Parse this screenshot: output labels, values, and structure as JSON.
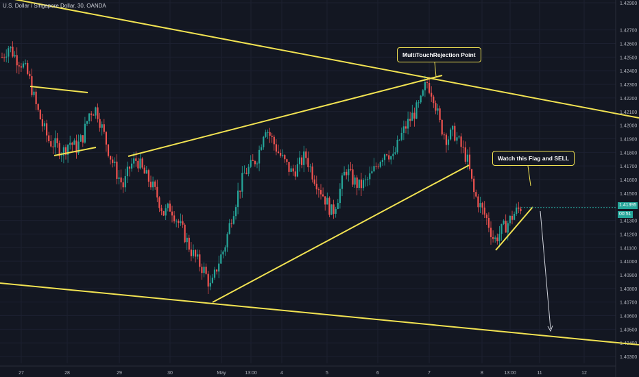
{
  "header": {
    "title": "U.S. Dollar / Singapore Dollar, 30, OANDA"
  },
  "annotations": {
    "rejection": "MultiTouchRejection Point",
    "flag": "Watch this Flag and SELL"
  },
  "badges": {
    "last_price": "1.41395",
    "countdown": "00:51"
  },
  "colors": {
    "background": "#131722",
    "up_candle": "#26a69a",
    "down_candle": "#ef5350",
    "trendline": "#f2e352",
    "axis_text": "#b2b5be",
    "grid": "#1c2030"
  },
  "chart_data": {
    "type": "candlestick",
    "symbol": "USDSGD",
    "interval": "30",
    "y_tick_labels": [
      "1.42900",
      "1.42700",
      "1.42600",
      "1.42500",
      "1.42400",
      "1.42300",
      "1.42200",
      "1.42100",
      "1.42000",
      "1.41900",
      "1.41800",
      "1.41700",
      "1.41600",
      "1.41500",
      "1.41400",
      "1.41300",
      "1.41200",
      "1.41100",
      "1.41000",
      "1.40900",
      "1.40800",
      "1.40700",
      "1.40600",
      "1.40500",
      "1.40400",
      "1.40300"
    ],
    "ylim": [
      1.4025,
      1.4292
    ],
    "x_tick_labels": [
      "27",
      "28",
      "29",
      "30",
      "May",
      "13:00",
      "4",
      "5",
      "6",
      "7",
      "8",
      "13:00",
      "11",
      "12"
    ],
    "price_path": [
      [
        0,
        1.425
      ],
      [
        1,
        1.4258
      ],
      [
        2,
        1.425
      ],
      [
        3,
        1.4245
      ],
      [
        4,
        1.4235
      ],
      [
        5,
        1.4215
      ],
      [
        6,
        1.42
      ],
      [
        7,
        1.4188
      ],
      [
        8,
        1.4185
      ],
      [
        9,
        1.418
      ],
      [
        10,
        1.4188
      ],
      [
        11,
        1.4183
      ],
      [
        12,
        1.4192
      ],
      [
        13,
        1.421
      ],
      [
        14,
        1.4212
      ],
      [
        15,
        1.4195
      ],
      [
        16,
        1.4178
      ],
      [
        17,
        1.4165
      ],
      [
        18,
        1.4155
      ],
      [
        19,
        1.417
      ],
      [
        20,
        1.4175
      ],
      [
        21,
        1.4165
      ],
      [
        22,
        1.4158
      ],
      [
        23,
        1.4148
      ],
      [
        24,
        1.4135
      ],
      [
        25,
        1.414
      ],
      [
        26,
        1.413
      ],
      [
        27,
        1.412
      ],
      [
        28,
        1.4108
      ],
      [
        29,
        1.41
      ],
      [
        30,
        1.4093
      ],
      [
        31,
        1.408
      ],
      [
        32,
        1.4098
      ],
      [
        33,
        1.411
      ],
      [
        34,
        1.4132
      ],
      [
        35,
        1.415
      ],
      [
        36,
        1.4165
      ],
      [
        37,
        1.417
      ],
      [
        38,
        1.4178
      ],
      [
        39,
        1.42
      ],
      [
        40,
        1.419
      ],
      [
        41,
        1.418
      ],
      [
        42,
        1.4172
      ],
      [
        43,
        1.4165
      ],
      [
        44,
        1.417
      ],
      [
        45,
        1.4178
      ],
      [
        46,
        1.4165
      ],
      [
        47,
        1.4155
      ],
      [
        48,
        1.4145
      ],
      [
        49,
        1.4135
      ],
      [
        50,
        1.415
      ],
      [
        51,
        1.4168
      ],
      [
        52,
        1.416
      ],
      [
        53,
        1.4155
      ],
      [
        54,
        1.4158
      ],
      [
        55,
        1.4165
      ],
      [
        56,
        1.4175
      ],
      [
        57,
        1.4182
      ],
      [
        58,
        1.4175
      ],
      [
        59,
        1.419
      ],
      [
        60,
        1.42
      ],
      [
        61,
        1.4208
      ],
      [
        62,
        1.4215
      ],
      [
        63,
        1.4232
      ],
      [
        64,
        1.4222
      ],
      [
        65,
        1.42
      ],
      [
        66,
        1.419
      ],
      [
        67,
        1.4195
      ],
      [
        68,
        1.4185
      ],
      [
        69,
        1.4175
      ],
      [
        70,
        1.415
      ],
      [
        71,
        1.414
      ],
      [
        72,
        1.413
      ],
      [
        73,
        1.4115
      ],
      [
        74,
        1.4122
      ],
      [
        75,
        1.4128
      ],
      [
        76,
        1.4135
      ],
      [
        77,
        1.414
      ]
    ],
    "last_price": 1.41395,
    "trendlines": [
      {
        "name": "upper-descending",
        "from": [
          1.4305,
          0
        ],
        "to": [
          1.4205,
          1
        ]
      },
      {
        "name": "lower-descending",
        "from": [
          1.4087,
          0
        ],
        "to": [
          1.404,
          1
        ]
      }
    ]
  }
}
